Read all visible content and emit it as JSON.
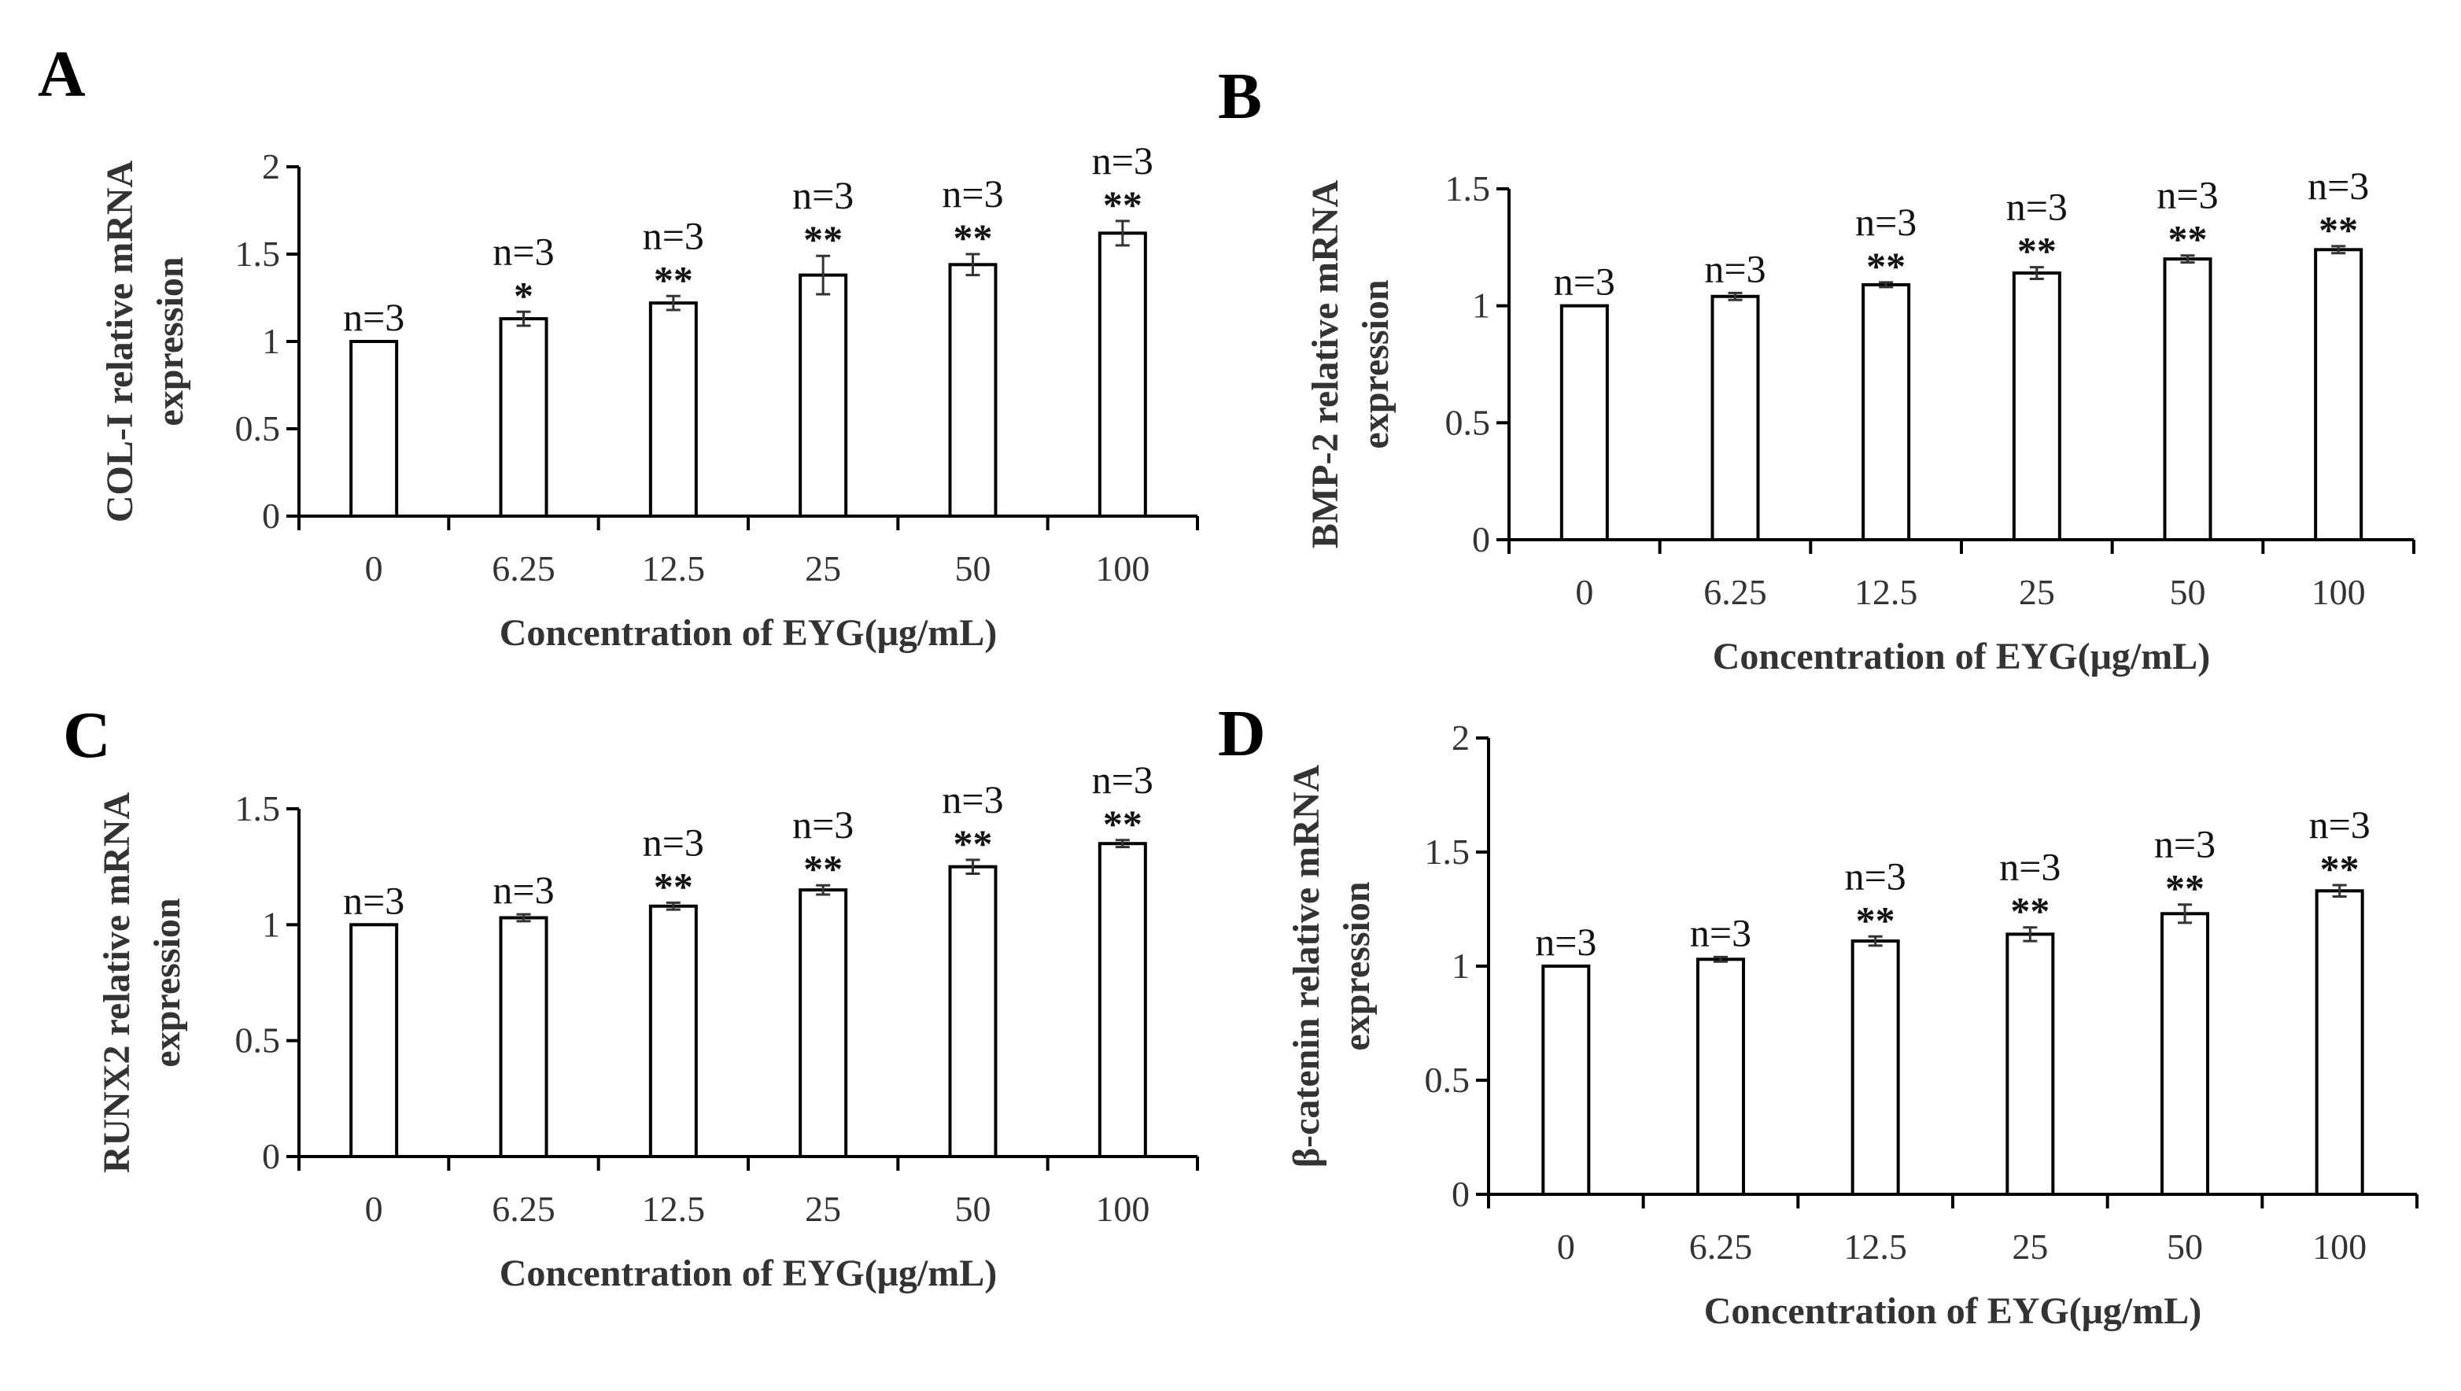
{
  "chart_data": [
    {
      "panel": "A",
      "type": "bar",
      "categories": [
        "0",
        "6.25",
        "12.5",
        "25",
        "50",
        "100"
      ],
      "values": [
        1.0,
        1.13,
        1.22,
        1.38,
        1.44,
        1.62
      ],
      "errors": [
        0.0,
        0.04,
        0.04,
        0.11,
        0.06,
        0.07
      ],
      "n_labels": [
        "n=3",
        "n=3",
        "n=3",
        "n=3",
        "n=3",
        "n=3"
      ],
      "significance": [
        "",
        "*",
        "**",
        "**",
        "**",
        "**"
      ],
      "xlabel": "Concentration of EYG(μg/mL)",
      "ylabel_line1": "COL-I relative mRNA",
      "ylabel_line2": "expression",
      "ylim": [
        0,
        2
      ],
      "yticks": [
        0,
        0.5,
        1,
        1.5,
        2
      ],
      "ytick_labels": [
        "0",
        "0.5",
        "1",
        "1.5",
        "2"
      ]
    },
    {
      "panel": "B",
      "type": "bar",
      "categories": [
        "0",
        "6.25",
        "12.5",
        "25",
        "50",
        "100"
      ],
      "values": [
        1.0,
        1.04,
        1.09,
        1.14,
        1.2,
        1.24
      ],
      "errors": [
        0.0,
        0.015,
        0.01,
        0.025,
        0.015,
        0.015
      ],
      "n_labels": [
        "n=3",
        "n=3",
        "n=3",
        "n=3",
        "n=3",
        "n=3"
      ],
      "significance": [
        "",
        "",
        "**",
        "**",
        "**",
        "**"
      ],
      "xlabel": "Concentration of EYG(μg/mL)",
      "ylabel_line1": "BMP-2 relative mRNA",
      "ylabel_line2": "expression",
      "ylim": [
        0,
        1.5
      ],
      "yticks": [
        0,
        0.5,
        1,
        1.5
      ],
      "ytick_labels": [
        "0",
        "0.5",
        "1",
        "1.5"
      ]
    },
    {
      "panel": "C",
      "type": "bar",
      "categories": [
        "0",
        "6.25",
        "12.5",
        "25",
        "50",
        "100"
      ],
      "values": [
        1.0,
        1.03,
        1.08,
        1.15,
        1.25,
        1.35
      ],
      "errors": [
        0.0,
        0.015,
        0.015,
        0.02,
        0.03,
        0.015
      ],
      "n_labels": [
        "n=3",
        "n=3",
        "n=3",
        "n=3",
        "n=3",
        "n=3"
      ],
      "significance": [
        "",
        "",
        "**",
        "**",
        "**",
        "**"
      ],
      "xlabel": "Concentration of EYG(μg/mL)",
      "ylabel_line1": "RUNX2 relative mRNA",
      "ylabel_line2": "expression",
      "ylim": [
        0,
        1.5
      ],
      "yticks": [
        0,
        0.5,
        1,
        1.5
      ],
      "ytick_labels": [
        "0",
        "0.5",
        "1",
        "1.5"
      ]
    },
    {
      "panel": "D",
      "type": "bar",
      "categories": [
        "0",
        "6.25",
        "12.5",
        "25",
        "50",
        "100"
      ],
      "values": [
        1.0,
        1.03,
        1.11,
        1.14,
        1.23,
        1.33
      ],
      "errors": [
        0.0,
        0.01,
        0.02,
        0.03,
        0.04,
        0.025
      ],
      "n_labels": [
        "n=3",
        "n=3",
        "n=3",
        "n=3",
        "n=3",
        "n=3"
      ],
      "significance": [
        "",
        "",
        "**",
        "**",
        "**",
        "**"
      ],
      "xlabel": "Concentration of EYG(μg/mL)",
      "ylabel_line1": "β-catenin relative mRNA",
      "ylabel_line2": "expression",
      "ylim": [
        0,
        2
      ],
      "yticks": [
        0,
        0.5,
        1,
        1.5,
        2
      ],
      "ytick_labels": [
        "0",
        "0.5",
        "1",
        "1.5",
        "2"
      ]
    }
  ]
}
